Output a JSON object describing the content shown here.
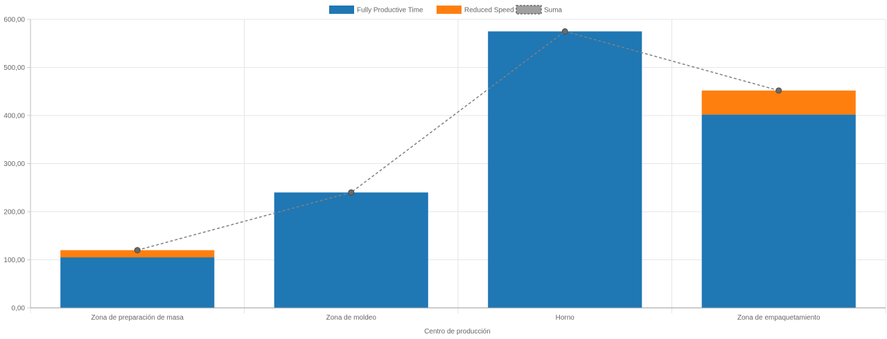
{
  "chart_data": {
    "type": "bar",
    "stacked": true,
    "categories": [
      "Zona de preparación de masa",
      "Zona de moldeo",
      "Horno",
      "Zona de empaquetamiento"
    ],
    "series": [
      {
        "name": "Fully Productive Time",
        "type": "bar",
        "color": "#1f77b4",
        "values": [
          105,
          240,
          575,
          402
        ]
      },
      {
        "name": "Reduced Speed",
        "type": "bar",
        "color": "#ff7f0e",
        "values": [
          15,
          0,
          0,
          50
        ]
      },
      {
        "name": "Suma",
        "type": "line",
        "style": "dashed",
        "color": "#808080",
        "values": [
          120,
          240,
          575,
          452
        ]
      }
    ],
    "xlabel": "Centro de producción",
    "ylabel": "",
    "ylim": [
      0,
      600
    ],
    "yticks": [
      "0,00",
      "100,00",
      "200,00",
      "300,00",
      "400,00",
      "500,00",
      "600,00"
    ],
    "grid": true,
    "legend_position": "top"
  }
}
